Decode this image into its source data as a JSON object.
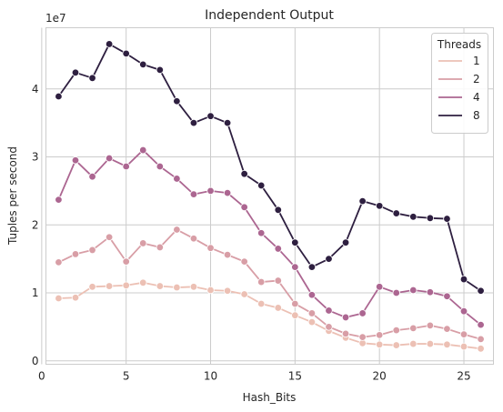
{
  "chart_data": {
    "type": "line",
    "title": "Independent Output",
    "xlabel": "Hash_Bits",
    "ylabel": "Tuples per second",
    "y_multiplier_label": "1e7",
    "x": [
      1,
      2,
      3,
      4,
      5,
      6,
      7,
      8,
      9,
      10,
      11,
      12,
      13,
      14,
      15,
      16,
      17,
      18,
      19,
      20,
      21,
      22,
      23,
      24,
      25,
      26
    ],
    "xlim": [
      0.25,
      26.75
    ],
    "ylim": [
      -0.05,
      4.9
    ],
    "x_ticks": [
      0,
      5,
      10,
      15,
      20,
      25
    ],
    "y_ticks": [
      0,
      1,
      2,
      3,
      4
    ],
    "grid": true,
    "legend": {
      "title": "Threads",
      "placement": "top-right"
    },
    "series": [
      {
        "name": "1",
        "color": "#ecc0b4",
        "values": [
          0.92,
          0.93,
          1.09,
          1.1,
          1.11,
          1.15,
          1.1,
          1.08,
          1.09,
          1.04,
          1.03,
          0.98,
          0.84,
          0.78,
          0.67,
          0.57,
          0.44,
          0.34,
          0.26,
          0.24,
          0.23,
          0.25,
          0.25,
          0.24,
          0.21,
          0.18
        ]
      },
      {
        "name": "2",
        "color": "#d89ea6",
        "values": [
          1.45,
          1.57,
          1.63,
          1.82,
          1.46,
          1.73,
          1.67,
          1.93,
          1.8,
          1.66,
          1.56,
          1.46,
          1.16,
          1.18,
          0.84,
          0.7,
          0.5,
          0.4,
          0.35,
          0.38,
          0.45,
          0.48,
          0.52,
          0.47,
          0.39,
          0.32
        ]
      },
      {
        "name": "4",
        "color": "#ac6691",
        "values": [
          2.37,
          2.95,
          2.71,
          2.98,
          2.86,
          3.1,
          2.86,
          2.68,
          2.45,
          2.5,
          2.47,
          2.26,
          1.88,
          1.65,
          1.38,
          0.97,
          0.74,
          0.64,
          0.7,
          1.09,
          1.0,
          1.04,
          1.01,
          0.95,
          0.73,
          0.53
        ]
      },
      {
        "name": "8",
        "color": "#2e1f40",
        "values": [
          3.89,
          4.24,
          4.16,
          4.66,
          4.52,
          4.36,
          4.28,
          3.82,
          3.5,
          3.6,
          3.5,
          2.75,
          2.58,
          2.22,
          1.74,
          1.38,
          1.5,
          1.74,
          2.35,
          2.28,
          2.17,
          2.12,
          2.1,
          2.09,
          1.2,
          1.03
        ]
      }
    ]
  }
}
